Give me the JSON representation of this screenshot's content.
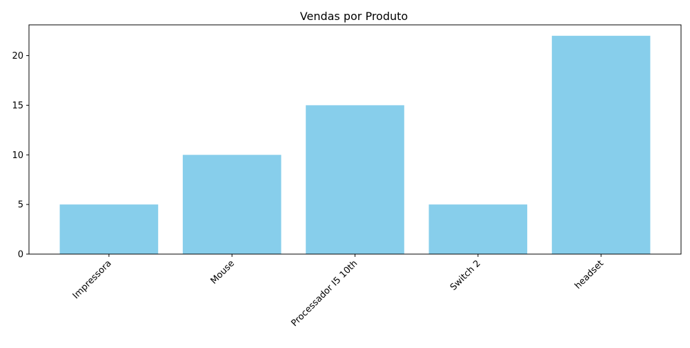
{
  "chart_data": {
    "type": "bar",
    "title": "Vendas por Produto",
    "xlabel": "",
    "ylabel": "",
    "categories": [
      "Impressora",
      "Mouse",
      "Processador I5 10th",
      "Switch 2",
      "headset"
    ],
    "values": [
      5,
      10,
      15,
      5,
      22
    ],
    "ylim": [
      0,
      23.1
    ],
    "yticks": [
      0,
      5,
      10,
      15,
      20
    ],
    "x_tick_rotation_deg": 45,
    "grid": false,
    "legend": "none",
    "bar_color": "#87CEEB",
    "axis_color": "#000000"
  }
}
